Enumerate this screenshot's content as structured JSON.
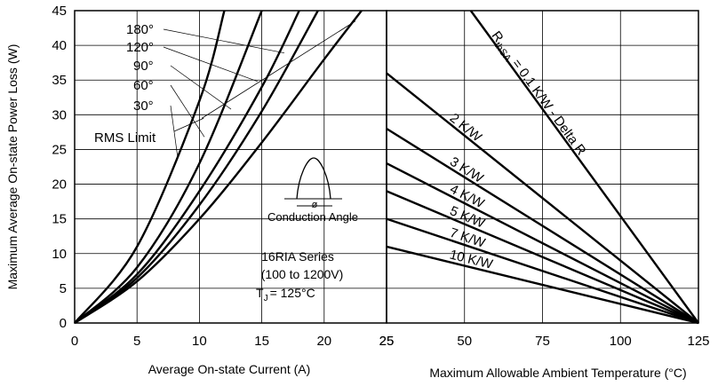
{
  "chart_data": {
    "type": "line",
    "ylabel": "Maximum Average On-state Power Loss (W)",
    "ylim": [
      0,
      45
    ],
    "yticks": [
      0,
      5,
      10,
      15,
      20,
      25,
      30,
      35,
      40,
      45
    ],
    "grid": true,
    "left_panel": {
      "xlabel": "Average On-state Current (A)",
      "xlim": [
        0,
        25
      ],
      "xticks": [
        0,
        5,
        10,
        15,
        20,
        25
      ],
      "series": [
        {
          "name": "180°",
          "x": [
            0,
            5,
            10,
            15,
            20,
            23
          ],
          "y": [
            0,
            6,
            15,
            26,
            38,
            45
          ]
        },
        {
          "name": "120°",
          "x": [
            0,
            5,
            10,
            15,
            19.5
          ],
          "y": [
            0,
            6.5,
            17,
            30.5,
            45
          ]
        },
        {
          "name": "90°",
          "x": [
            0,
            5,
            10,
            15,
            18
          ],
          "y": [
            0,
            7,
            19,
            34,
            45
          ]
        },
        {
          "name": "60°",
          "x": [
            0,
            5,
            10,
            15
          ],
          "y": [
            0,
            8,
            23,
            45
          ]
        },
        {
          "name": "30°",
          "x": [
            0,
            5,
            10,
            12
          ],
          "y": [
            0,
            11,
            32,
            45
          ]
        }
      ],
      "rms_limit": {
        "name": "RMS Limit",
        "x": [
          10.2,
          22.5
        ],
        "y": [
          29.5,
          43.5
        ]
      },
      "annotations": {
        "conduction": "Conduction Angle",
        "conduction_symbol": "ø",
        "series_name": "16RIA Series",
        "voltage": "(100 to 1200V)",
        "tj_prefix": "T",
        "tj_sub": "J",
        "tj_value": "= 125°C"
      }
    },
    "right_panel": {
      "xlabel": "Maximum Allowable Ambient Temperature (°C)",
      "xlim": [
        25,
        125
      ],
      "xticks": [
        25,
        50,
        75,
        100,
        125
      ],
      "endpoint": {
        "x": 125,
        "y": 0
      },
      "lines": [
        {
          "label": "R",
          "label_sub": "thSA",
          "label_rest": " = 0.1 K/W - Delta R",
          "start": {
            "x": 52,
            "y": 45
          }
        },
        {
          "label": "2 K/W",
          "start": {
            "x": 25,
            "y": 36
          }
        },
        {
          "label": "3 K/W",
          "start": {
            "x": 25,
            "y": 28
          }
        },
        {
          "label": "4 K/W",
          "start": {
            "x": 25,
            "y": 23
          }
        },
        {
          "label": "5 K/W",
          "start": {
            "x": 25,
            "y": 19
          }
        },
        {
          "label": "7 K/W",
          "start": {
            "x": 25,
            "y": 15
          }
        },
        {
          "label": "10 K/W",
          "start": {
            "x": 25,
            "y": 11
          }
        }
      ]
    }
  }
}
